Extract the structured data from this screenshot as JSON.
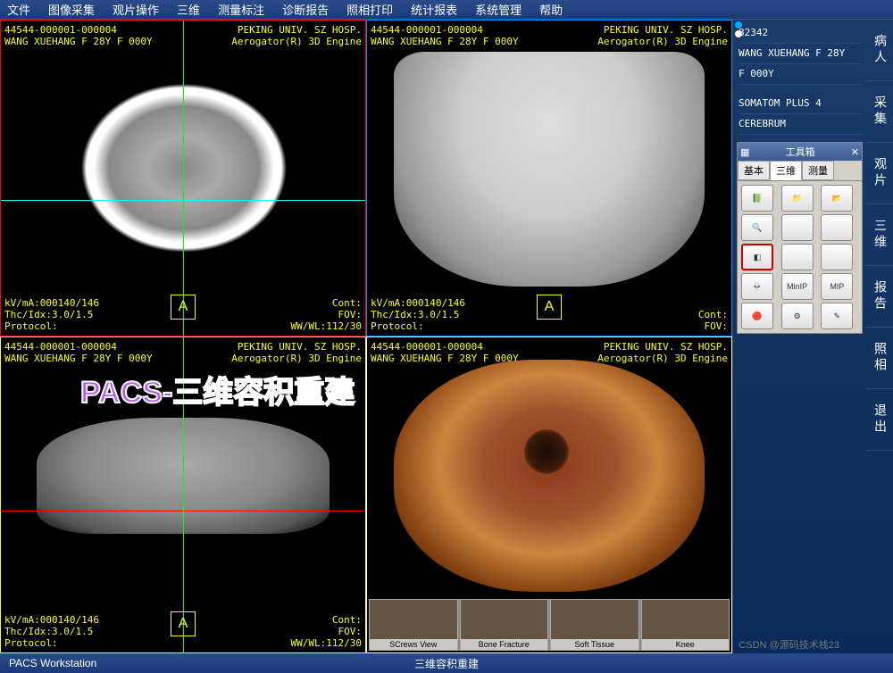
{
  "menu": [
    "文件",
    "图像采集",
    "观片操作",
    "三维",
    "测量标注",
    "诊断报告",
    "照相打印",
    "统计报表",
    "系统管理",
    "帮助"
  ],
  "viewport_common": {
    "id_line": "44544-000001-000004",
    "patient_line": "WANG XUEHANG F 28Y F 000Y",
    "hosp_line": "PEKING UNIV. SZ HOSP.",
    "engine_line": "Aerogator(R) 3D Engine",
    "kv_line": "kV/mA:000140/146",
    "thc_line": "Thc/Idx:3.0/1.5",
    "proto_line": "Protocol:",
    "cont_line": "Cont:",
    "fov_line": "FOV:",
    "wwwl_line": "WW/WL:112/30",
    "orient": "A"
  },
  "crosshair": {
    "vp1_h_color": "#00ffff",
    "vp1_h_top": "57%",
    "vp1_v_color": "#00ff00",
    "vp1_v_left": "50%",
    "vp3_h_color": "#ff0000",
    "vp3_h_top": "55%",
    "vp3_v_color": "#00ff00",
    "vp3_v_left": "50%"
  },
  "thumbs": [
    "SCrews View",
    "Bone Fracture",
    "Soft Tissue",
    "Knee"
  ],
  "patient": {
    "id": "82342",
    "name": "WANG XUEHANG F 28Y",
    "extra": "F 000Y",
    "scanner": "SOMATOM PLUS 4",
    "study": "CEREBRUM"
  },
  "sidetabs": [
    "病人",
    "采集",
    "观片",
    "三维",
    "报告",
    "照相",
    "退出"
  ],
  "toolbox": {
    "title": "工具箱",
    "tabs": [
      "基本",
      "三维",
      "测量"
    ],
    "active_tab": 1,
    "buttons": [
      {
        "name": "book-icon",
        "label": "📗"
      },
      {
        "name": "open-icon",
        "label": "📁"
      },
      {
        "name": "folder-icon",
        "label": "📂"
      },
      {
        "name": "zoom-icon",
        "label": "🔍"
      },
      {
        "name": "blank1",
        "label": ""
      },
      {
        "name": "blank2",
        "label": ""
      },
      {
        "name": "cube-icon",
        "label": "◧",
        "selected": true
      },
      {
        "name": "blank3",
        "label": ""
      },
      {
        "name": "blank4",
        "label": ""
      },
      {
        "name": "skull-icon",
        "label": "💀"
      },
      {
        "name": "minip-btn",
        "label": "MinIP"
      },
      {
        "name": "mip-btn",
        "label": "MIP"
      },
      {
        "name": "color-icon",
        "label": "🔴"
      },
      {
        "name": "tool1",
        "label": "⚙"
      },
      {
        "name": "tool2",
        "label": "✎"
      }
    ]
  },
  "status": {
    "left": "PACS Workstation",
    "center": "三维容积重建"
  },
  "overlay": "PACS-三维容积重建",
  "watermark": "CSDN @源码技术栈23",
  "colors": {
    "border1": "#ff0000",
    "border2": "#0088ff",
    "border3": "#ffff00",
    "border4": "#ffffff"
  }
}
